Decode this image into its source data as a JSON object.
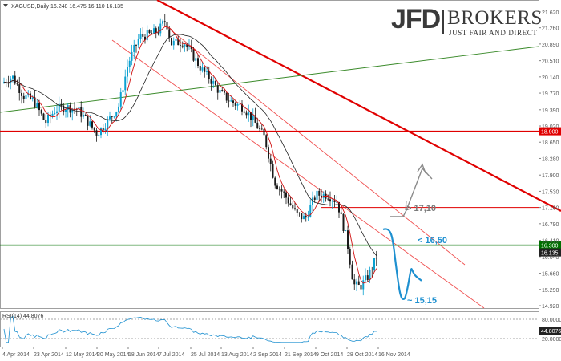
{
  "brand": {
    "name": "JFD",
    "suffix": "BROKERS",
    "tagline": "JUST FAIR AND DIRECT"
  },
  "chart_data": {
    "type": "candlestick",
    "symbol_header": "XAGUSD,Daily  16.248 16.475 16.110 16.135",
    "y_ticks": [
      21.62,
      21.26,
      20.89,
      20.51,
      20.14,
      19.77,
      19.39,
      19.02,
      18.65,
      18.28,
      17.9,
      17.53,
      17.16,
      16.79,
      16.41,
      16.04,
      15.66,
      15.29,
      14.92
    ],
    "ylim": [
      14.92,
      21.8
    ],
    "x_ticks": [
      "4 Apr 2014",
      "23 Apr 2014",
      "12 May 2014",
      "30 May 2014",
      "18 Jun 2014",
      "7 Jul 2014",
      "25 Jul 2014",
      "13 Aug 2014",
      "2 Sep 2014",
      "21 Sep 2014",
      "9 Oct 2014",
      "28 Oct 2014",
      "16 Nov 2014"
    ],
    "close_path": [
      [
        "4 Apr 2014",
        20.0
      ],
      [
        "10 Apr 2014",
        20.15
      ],
      [
        "17 Apr 2014",
        19.7
      ],
      [
        "23 Apr 2014",
        19.6
      ],
      [
        "30 Apr 2014",
        19.1
      ],
      [
        "6 May 2014",
        19.4
      ],
      [
        "12 May 2014",
        19.45
      ],
      [
        "19 May 2014",
        19.4
      ],
      [
        "26 May 2014",
        19.05
      ],
      [
        "30 May 2014",
        18.85
      ],
      [
        "5 Jun 2014",
        19.1
      ],
      [
        "12 Jun 2014",
        19.45
      ],
      [
        "18 Jun 2014",
        20.45
      ],
      [
        "25 Jun 2014",
        21.05
      ],
      [
        "1 Jul 2014",
        21.1
      ],
      [
        "7 Jul 2014",
        21.2
      ],
      [
        "11 Jul 2014",
        21.45
      ],
      [
        "14 Jul 2014",
        20.9
      ],
      [
        "21 Jul 2014",
        20.95
      ],
      [
        "25 Jul 2014",
        20.7
      ],
      [
        "1 Aug 2014",
        20.3
      ],
      [
        "7 Aug 2014",
        20.05
      ],
      [
        "13 Aug 2014",
        19.75
      ],
      [
        "20 Aug 2014",
        19.55
      ],
      [
        "27 Aug 2014",
        19.45
      ],
      [
        "2 Sep 2014",
        19.15
      ],
      [
        "9 Sep 2014",
        18.75
      ],
      [
        "15 Sep 2014",
        17.75
      ],
      [
        "21 Sep 2014",
        17.45
      ],
      [
        "28 Sep 2014",
        17.0
      ],
      [
        "3 Oct 2014",
        16.9
      ],
      [
        "9 Oct 2014",
        17.45
      ],
      [
        "16 Oct 2014",
        17.45
      ],
      [
        "22 Oct 2014",
        17.3
      ],
      [
        "28 Oct 2014",
        16.4
      ],
      [
        "1 Nov 2014",
        15.4
      ],
      [
        "5 Nov 2014",
        15.35
      ],
      [
        "10 Nov 2014",
        15.6
      ],
      [
        "16 Nov 2014",
        16.135
      ]
    ],
    "price_box": {
      "current": "16.135"
    },
    "horizontal_levels": [
      {
        "label": "18.900",
        "value": 18.9,
        "color": "#e00000"
      },
      {
        "label": "16.300",
        "value": 16.3,
        "color": "#007000"
      },
      {
        "label": "",
        "value": 17.16,
        "color": "#e00000"
      }
    ],
    "annotations": [
      {
        "text": "> 17,10",
        "color": "#7a7a7a"
      },
      {
        "text": "< 16,50",
        "color": "#1e90d0"
      },
      {
        "text": "~ 15,15",
        "color": "#1e90d0"
      }
    ],
    "rsi": {
      "label": "RSI(14) 44.8076",
      "levels": [
        "80.0000",
        "20.0000"
      ],
      "current_label": "44.8076"
    }
  }
}
